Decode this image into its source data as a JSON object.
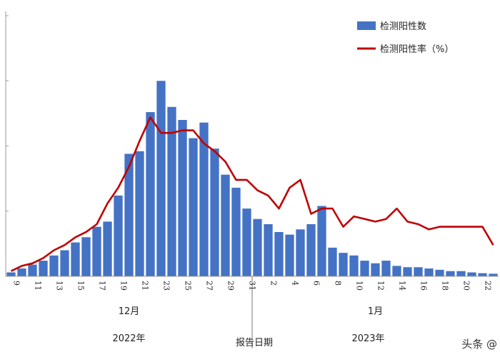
{
  "chart_data": {
    "type": "bar",
    "categories": [
      "9",
      "10",
      "11",
      "12",
      "13",
      "14",
      "15",
      "16",
      "17",
      "18",
      "19",
      "20",
      "21",
      "22",
      "23",
      "24",
      "25",
      "26",
      "27",
      "28",
      "29",
      "30",
      "31",
      "1",
      "2",
      "3",
      "4",
      "5",
      "6",
      "7",
      "8",
      "9",
      "10",
      "11",
      "12",
      "13",
      "14",
      "15",
      "16",
      "17",
      "18",
      "19",
      "20",
      "21",
      "22",
      "23"
    ],
    "tick_labels": [
      "9",
      "11",
      "13",
      "15",
      "17",
      "19",
      "21",
      "23",
      "25",
      "27",
      "29",
      "31",
      "2",
      "4",
      "6",
      "8",
      "10",
      "12",
      "14",
      "16",
      "18",
      "20",
      "22"
    ],
    "month_labels": [
      "12月",
      "1月"
    ],
    "year_labels": [
      "2022年",
      "2023年"
    ],
    "xlabel": "报告日期",
    "ylim": [
      0,
      100
    ],
    "grid": false,
    "legend_position": "top-right",
    "series": [
      {
        "name": "检测阳性数",
        "type": "bar",
        "color": "#4472C4",
        "values": [
          1.5,
          3,
          4.5,
          6,
          8,
          10,
          13,
          15,
          19,
          21,
          31,
          47,
          48,
          63,
          75,
          65,
          60,
          53,
          59,
          49,
          39,
          34,
          26,
          22,
          20,
          17,
          16,
          18,
          20,
          27,
          11,
          9,
          8,
          6,
          5,
          6,
          4,
          3.5,
          3.5,
          3,
          2.5,
          2,
          2,
          1.5,
          1.2,
          1
        ]
      },
      {
        "name": "检测阳性率（%）",
        "type": "line",
        "color": "#C00000",
        "values": [
          2,
          4,
          5,
          7,
          10,
          12,
          15,
          17,
          20,
          28,
          34,
          42,
          52,
          61,
          55,
          55,
          56,
          56,
          51,
          48,
          44,
          37,
          37,
          33,
          31,
          26,
          34,
          37,
          24,
          26,
          26,
          19,
          23,
          22,
          21,
          22,
          26,
          21,
          20,
          18,
          19,
          19,
          19,
          19,
          19,
          12
        ]
      }
    ]
  },
  "watermark": "头条 @"
}
